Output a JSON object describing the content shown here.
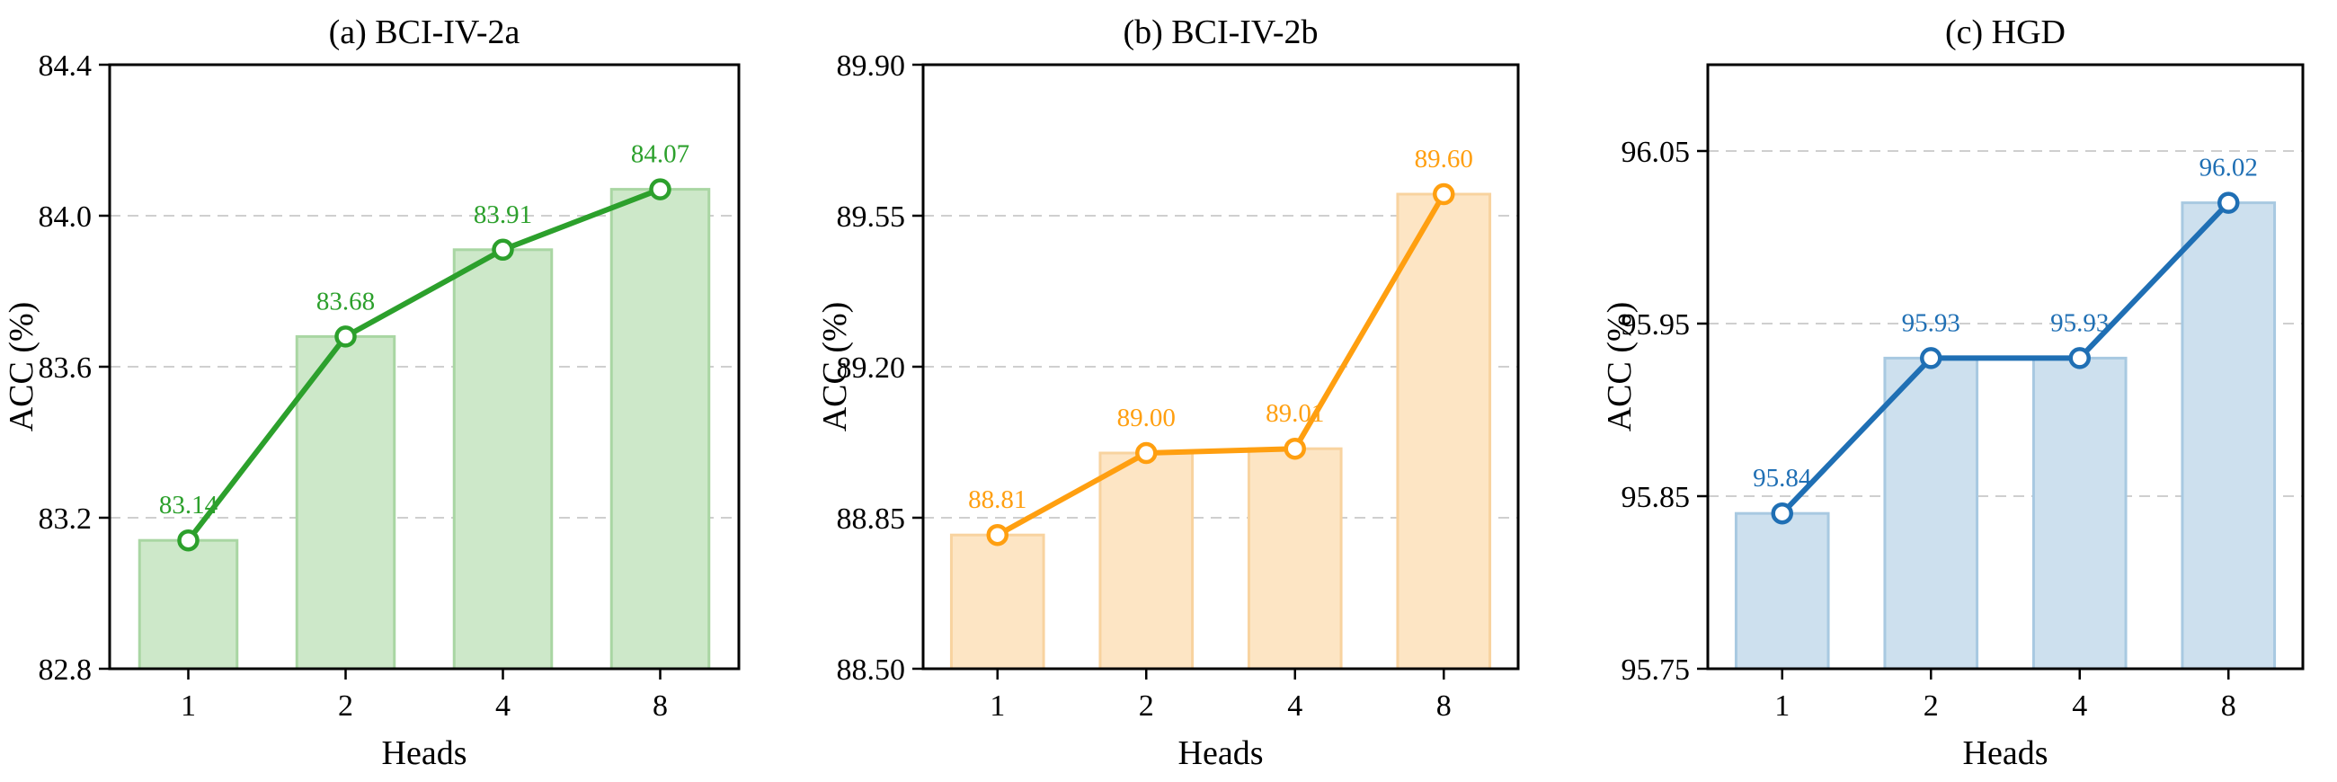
{
  "chart_data": [
    {
      "type": "bar",
      "title": "(a) BCI-IV-2a",
      "xlabel": "Heads",
      "ylabel": "ACC (%)",
      "categories": [
        "1",
        "2",
        "4",
        "8"
      ],
      "values": [
        83.14,
        83.68,
        83.91,
        84.07
      ],
      "value_labels": [
        "83.14",
        "83.68",
        "83.91",
        "84.07"
      ],
      "ylim": [
        82.8,
        84.4
      ],
      "yticks": [
        82.8,
        83.2,
        83.6,
        84.0,
        84.4
      ],
      "ytick_labels": [
        "82.8",
        "83.2",
        "83.6",
        "84.0",
        "84.4"
      ],
      "overlay": "line with hollow circle markers over bars",
      "grid": "horizontal dashed",
      "colors": {
        "line": "#2ca02c",
        "bar_fill": "#cde8c9",
        "bar_edge": "#a9d6a3",
        "label": "#2ca02c"
      }
    },
    {
      "type": "bar",
      "title": "(b) BCI-IV-2b",
      "xlabel": "Heads",
      "ylabel": "ACC (%)",
      "categories": [
        "1",
        "2",
        "4",
        "8"
      ],
      "values": [
        88.81,
        89.0,
        89.01,
        89.6
      ],
      "value_labels": [
        "88.81",
        "89.00",
        "89.01",
        "89.60"
      ],
      "ylim": [
        88.5,
        89.9
      ],
      "yticks": [
        88.5,
        88.85,
        89.2,
        89.55,
        89.9
      ],
      "ytick_labels": [
        "88.50",
        "88.85",
        "89.20",
        "89.55",
        "89.90"
      ],
      "overlay": "line with hollow circle markers over bars",
      "grid": "horizontal dashed",
      "colors": {
        "line": "#ff9f10",
        "bar_fill": "#fde5c4",
        "bar_edge": "#f8d39f",
        "label": "#ff9f10"
      }
    },
    {
      "type": "bar",
      "title": "(c) HGD",
      "xlabel": "Heads",
      "ylabel": "ACC (%)",
      "categories": [
        "1",
        "2",
        "4",
        "8"
      ],
      "values": [
        95.84,
        95.93,
        95.93,
        96.02
      ],
      "value_labels": [
        "95.84",
        "95.93",
        "95.93",
        "96.02"
      ],
      "ylim": [
        95.75,
        96.1
      ],
      "yticks": [
        95.75,
        95.85,
        95.95,
        96.05
      ],
      "ytick_labels": [
        "95.75",
        "95.85",
        "95.95",
        "96.05"
      ],
      "overlay": "line with hollow circle markers over bars",
      "grid": "horizontal dashed",
      "colors": {
        "line": "#1f6fb4",
        "bar_fill": "#cde0ee",
        "bar_edge": "#a8c9e1",
        "label": "#1f6fb4"
      }
    }
  ]
}
